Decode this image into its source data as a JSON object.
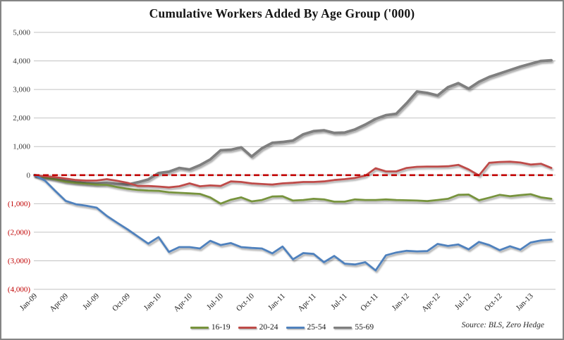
{
  "figure": {
    "source_note": "Source: BLS, Zero Hedge"
  },
  "chart_data": {
    "type": "line",
    "title": "Cumulative Workers Added By Age Group ('000)",
    "xlabel": "",
    "ylabel": "",
    "ylim": [
      -4000,
      5000
    ],
    "grid": true,
    "legend_position": "bottom-center",
    "x_tick_every": 3,
    "negative_tick_color": "#c00000",
    "positive_tick_color": "#3a3a3a",
    "gridline_color": "#c2c2c2",
    "x": [
      "Jan-09",
      "Feb-09",
      "Mar-09",
      "Apr-09",
      "May-09",
      "Jun-09",
      "Jul-09",
      "Aug-09",
      "Sep-09",
      "Oct-09",
      "Nov-09",
      "Dec-09",
      "Jan-10",
      "Feb-10",
      "Mar-10",
      "Apr-10",
      "May-10",
      "Jun-10",
      "Jul-10",
      "Aug-10",
      "Sep-10",
      "Oct-10",
      "Nov-10",
      "Dec-10",
      "Jan-11",
      "Feb-11",
      "Mar-11",
      "Apr-11",
      "May-11",
      "Jun-11",
      "Jul-11",
      "Aug-11",
      "Sep-11",
      "Oct-11",
      "Nov-11",
      "Dec-11",
      "Jan-12",
      "Feb-12",
      "Mar-12",
      "Apr-12",
      "May-12",
      "Jun-12",
      "Jul-12",
      "Aug-12",
      "Sep-12",
      "Oct-12",
      "Nov-12",
      "Dec-12",
      "Jan-13",
      "Feb-13",
      "Mar-13"
    ],
    "y_ticks": [
      {
        "value": 5000,
        "label": "5,000"
      },
      {
        "value": 4000,
        "label": "4,000"
      },
      {
        "value": 3000,
        "label": "3,000"
      },
      {
        "value": 2000,
        "label": "2,000"
      },
      {
        "value": 1000,
        "label": "1,000"
      },
      {
        "value": 0,
        "label": "0"
      },
      {
        "value": -1000,
        "label": "(1,000)"
      },
      {
        "value": -2000,
        "label": "(2,000)"
      },
      {
        "value": -3000,
        "label": "(3,000)"
      },
      {
        "value": -4000,
        "label": "(4,000)"
      }
    ],
    "zero_line": {
      "value": 0,
      "color": "#c00000",
      "style": "dashed"
    },
    "series": [
      {
        "name": "16-19",
        "color": "#77933c",
        "values": [
          0,
          -80,
          -150,
          -230,
          -270,
          -300,
          -330,
          -340,
          -420,
          -480,
          -520,
          -540,
          -550,
          -600,
          -620,
          -640,
          -660,
          -780,
          -1000,
          -860,
          -780,
          -920,
          -870,
          -750,
          -740,
          -890,
          -870,
          -830,
          -850,
          -930,
          -930,
          -850,
          -870,
          -870,
          -850,
          -870,
          -880,
          -890,
          -910,
          -870,
          -830,
          -690,
          -680,
          -880,
          -790,
          -690,
          -740,
          -700,
          -670,
          -780,
          -830
        ]
      },
      {
        "name": "20-24",
        "color": "#be4b48",
        "values": [
          0,
          -40,
          -70,
          -120,
          -170,
          -190,
          -190,
          -140,
          -200,
          -270,
          -380,
          -380,
          -400,
          -430,
          -390,
          -290,
          -390,
          -360,
          -380,
          -220,
          -240,
          -290,
          -310,
          -330,
          -290,
          -270,
          -240,
          -240,
          -220,
          -170,
          -140,
          -100,
          -20,
          240,
          130,
          130,
          250,
          290,
          300,
          300,
          310,
          360,
          200,
          -10,
          430,
          460,
          470,
          440,
          370,
          400,
          250
        ]
      },
      {
        "name": "25-54",
        "color": "#4f81bd",
        "values": [
          0,
          -190,
          -550,
          -900,
          -1020,
          -1070,
          -1140,
          -1430,
          -1670,
          -1900,
          -2150,
          -2400,
          -2170,
          -2690,
          -2520,
          -2520,
          -2570,
          -2300,
          -2450,
          -2380,
          -2520,
          -2550,
          -2570,
          -2740,
          -2500,
          -2950,
          -2730,
          -2760,
          -3050,
          -2830,
          -3100,
          -3130,
          -3050,
          -3340,
          -2810,
          -2710,
          -2650,
          -2670,
          -2660,
          -2410,
          -2480,
          -2430,
          -2600,
          -2340,
          -2450,
          -2630,
          -2490,
          -2610,
          -2360,
          -2290,
          -2260
        ]
      },
      {
        "name": "55-69",
        "color": "#7f7f7f",
        "values": [
          0,
          -60,
          -120,
          -200,
          -250,
          -280,
          -300,
          -280,
          -310,
          -330,
          -250,
          -150,
          70,
          120,
          250,
          200,
          350,
          550,
          870,
          890,
          970,
          650,
          940,
          1130,
          1160,
          1210,
          1430,
          1540,
          1570,
          1480,
          1490,
          1600,
          1770,
          1970,
          2100,
          2150,
          2520,
          2930,
          2880,
          2790,
          3080,
          3220,
          3030,
          3270,
          3440,
          3560,
          3680,
          3800,
          3900,
          4000,
          4020
        ]
      }
    ]
  }
}
